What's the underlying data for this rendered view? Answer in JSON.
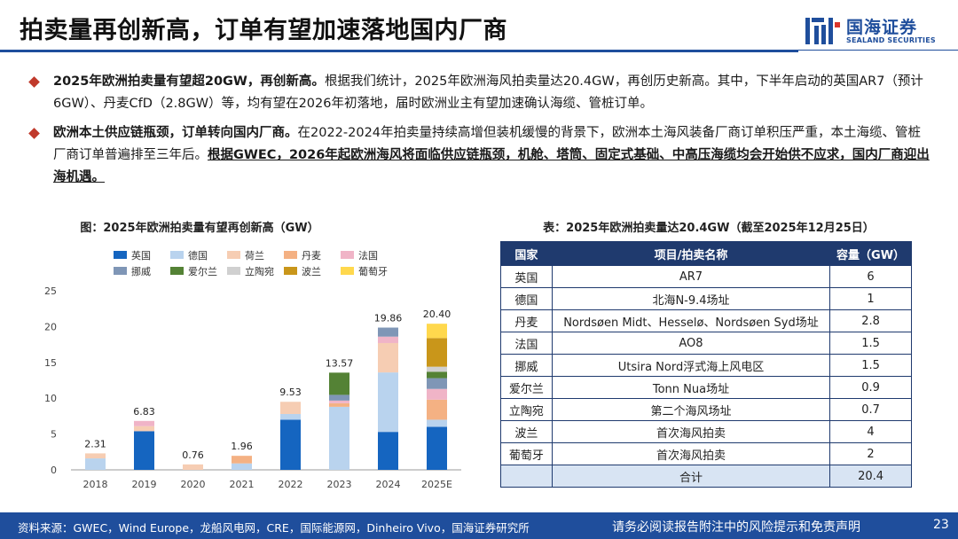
{
  "header": {
    "title": "拍卖量再创新高，订单有望加速落地国内厂商",
    "logo_cn": "国海证券",
    "logo_en": "SEALAND SECURITIES"
  },
  "bullets": [
    {
      "lead": "2025年欧洲拍卖量有望超20GW，再创新高。",
      "body": "根据我们统计，2025年欧洲海风拍卖量达20.4GW，再创历史新高。其中，下半年启动的英国AR7（预计6GW）、丹麦CfD（2.8GW）等，均有望在2026年初落地，届时欧洲业主有望加速确认海缆、管桩订单。"
    },
    {
      "lead": "欧洲本土供应链瓶颈，订单转向国内厂商。",
      "body": "在2022-2024年拍卖量持续高增但装机缓慢的背景下，欧洲本土海风装备厂商订单积压严重，本土海缆、管桩厂商订单普遍排至三年后。",
      "underline": "根据GWEC，2026年起欧洲海风将面临供应链瓶颈，机舱、塔筒、固定式基础、中高压海缆均会开始供不应求，国内厂商迎出海机遇。"
    }
  ],
  "chart_data": {
    "type": "bar",
    "stacked": true,
    "title": "图：2025年欧洲拍卖量有望再创新高（GW）",
    "categories": [
      "2018",
      "2019",
      "2020",
      "2021",
      "2022",
      "2023",
      "2024",
      "2025E"
    ],
    "ylim": [
      0,
      25
    ],
    "yticks": [
      0,
      5,
      10,
      15,
      20,
      25
    ],
    "totals": [
      "2.31",
      "6.83",
      "0.76",
      "1.96",
      "9.53",
      "13.57",
      "19.86",
      "20.40"
    ],
    "legend_position": "top",
    "grid": false,
    "series": [
      {
        "name": "英国",
        "color": "#1565c0",
        "values": [
          0,
          5.4,
          0,
          0,
          7.0,
          0,
          5.3,
          6.0
        ]
      },
      {
        "name": "德国",
        "color": "#b9d3ee",
        "values": [
          1.6,
          0,
          0,
          0.9,
          0.8,
          8.8,
          8.3,
          1.0
        ]
      },
      {
        "name": "荷兰",
        "color": "#f6cdb3",
        "values": [
          0.7,
          0.7,
          0.76,
          0,
          1.7,
          0,
          4.1,
          0
        ]
      },
      {
        "name": "丹麦",
        "color": "#f4b183",
        "values": [
          0,
          0,
          0,
          1.06,
          0,
          0.5,
          0,
          2.8
        ]
      },
      {
        "name": "法国",
        "color": "#f0b4c7",
        "values": [
          0,
          0.73,
          0,
          0,
          0,
          0.37,
          0.9,
          1.5
        ]
      },
      {
        "name": "挪威",
        "color": "#7f96b6",
        "values": [
          0,
          0,
          0,
          0,
          0,
          0.8,
          1.26,
          1.5
        ]
      },
      {
        "name": "爱尔兰",
        "color": "#548235",
        "values": [
          0,
          0,
          0,
          0,
          0,
          3.1,
          0,
          0.9
        ]
      },
      {
        "name": "立陶宛",
        "color": "#d0d0d0",
        "values": [
          0,
          0,
          0,
          0,
          0,
          0,
          0,
          0.7
        ]
      },
      {
        "name": "波兰",
        "color": "#c9961a",
        "values": [
          0,
          0,
          0,
          0,
          0,
          0,
          0,
          4.0
        ]
      },
      {
        "name": "葡萄牙",
        "color": "#ffd84d",
        "values": [
          0,
          0,
          0,
          0,
          0,
          0,
          0,
          2.0
        ]
      }
    ]
  },
  "table": {
    "title": "表：2025年欧洲拍卖量达20.4GW（截至2025年12月25日）",
    "headers": [
      "国家",
      "项目/拍卖名称",
      "容量（GW）"
    ],
    "rows": [
      [
        "英国",
        "AR7",
        "6"
      ],
      [
        "德国",
        "北海N-9.4场址",
        "1"
      ],
      [
        "丹麦",
        "Nordsøen Midt、Hesselø、Nordsøen Syd场址",
        "2.8"
      ],
      [
        "法国",
        "AO8",
        "1.5"
      ],
      [
        "挪威",
        "Utsira Nord浮式海上风电区",
        "1.5"
      ],
      [
        "爱尔兰",
        "Tonn Nua场址",
        "0.9"
      ],
      [
        "立陶宛",
        "第二个海风场址",
        "0.7"
      ],
      [
        "波兰",
        "首次海风拍卖",
        "4"
      ],
      [
        "葡萄牙",
        "首次海风拍卖",
        "2"
      ]
    ],
    "total_label": "合计",
    "total_value": "20.4"
  },
  "footer": {
    "source": "资料来源：GWEC，Wind Europe，龙船风电网，CRE，国际能源网，Dinheiro Vivo，国海证券研究所",
    "disclaimer": "请务必阅读报告附注中的风险提示和免责声明",
    "page": "23"
  }
}
